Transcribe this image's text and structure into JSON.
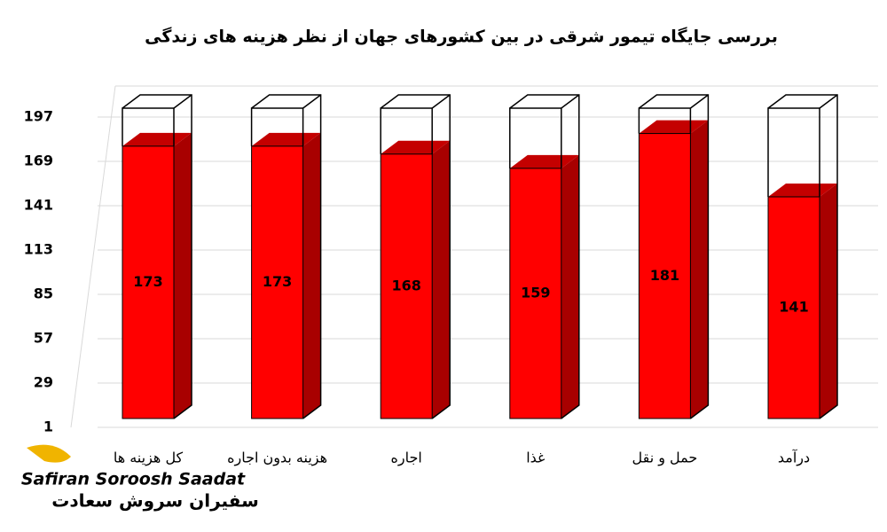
{
  "chart_data": {
    "type": "bar3d",
    "title": "بررسی جایگاه تیمور شرقی در بین کشورهای جهان از نظر هزینه های زندگی",
    "categories": [
      "کل هزینه ها",
      "هزینه بدون اجاره",
      "اجاره",
      "غذا",
      "حمل و نقل",
      "درآمد"
    ],
    "values": [
      173,
      173,
      168,
      159,
      181,
      141
    ],
    "color": "#ff0000",
    "side_color": "#a80000",
    "top_color": "#c40000",
    "ylim": [
      1,
      197
    ],
    "yticks": [
      1,
      29,
      57,
      85,
      113,
      141,
      169,
      197
    ],
    "grid": true,
    "logo": {
      "latin": "Safiran Soroosh Saadat",
      "persian": "سفیران سروش سعادت"
    }
  }
}
